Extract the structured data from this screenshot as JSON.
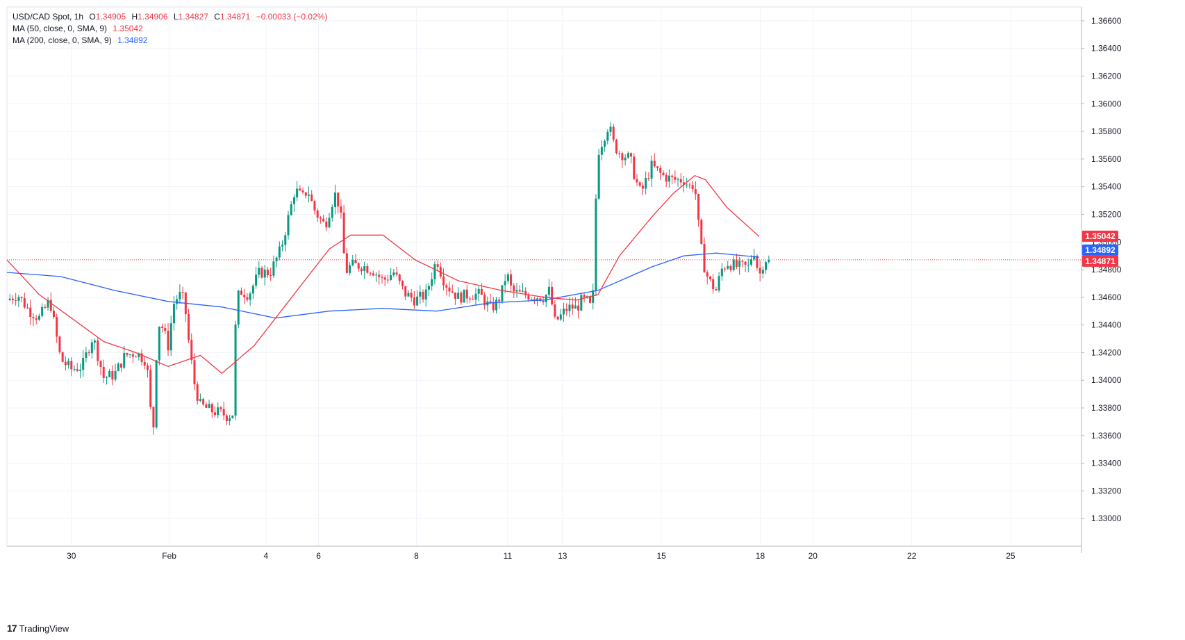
{
  "legend": {
    "title": "USD/CAD Spot, 1h",
    "o_label": "O",
    "o_value": "1.34905",
    "h_label": "H",
    "h_value": "1.34906",
    "l_label": "L",
    "l_value": "1.34827",
    "c_label": "C",
    "c_value": "1.34871",
    "change": "−0.00033 (−0.02%)",
    "ma50_label": "MA (50, close, 0, SMA, 9)",
    "ma50_value": "1.35042",
    "ma200_label": "MA (200, close, 0, SMA, 9)",
    "ma200_value": "1.34892"
  },
  "brand": {
    "logo_text": "17",
    "name": "TradingView"
  },
  "colors": {
    "bull": "#089981",
    "bear": "#f23645",
    "ma50": "#f23645",
    "ma200": "#2962ff",
    "grid": "#f0f3fa",
    "axis_text": "#131722",
    "price_line": "#f23645"
  },
  "chart_data": {
    "type": "candlestick",
    "title": "USD/CAD Spot, 1h",
    "ylim": [
      1.328,
      1.367
    ],
    "y_ticks": [
      "1.33000",
      "1.33200",
      "1.33400",
      "1.33600",
      "1.33800",
      "1.34000",
      "1.34200",
      "1.34400",
      "1.34600",
      "1.34800",
      "1.35000",
      "1.35200",
      "1.35400",
      "1.35600",
      "1.35800",
      "1.36000",
      "1.36200",
      "1.36400",
      "1.36600"
    ],
    "x_ticks": [
      {
        "label": "30",
        "t": 0.06
      },
      {
        "label": "Feb",
        "t": 0.151
      },
      {
        "label": "4",
        "t": 0.241
      },
      {
        "label": "6",
        "t": 0.29
      },
      {
        "label": "8",
        "t": 0.381
      },
      {
        "label": "11",
        "t": 0.466
      },
      {
        "label": "13",
        "t": 0.517
      },
      {
        "label": "15",
        "t": 0.609
      },
      {
        "label": "18",
        "t": 0.701
      },
      {
        "label": "20",
        "t": 0.75
      },
      {
        "label": "22",
        "t": 0.842
      },
      {
        "label": "25",
        "t": 0.934
      }
    ],
    "anchors": [
      [
        0.0,
        1.3458
      ],
      [
        0.01,
        1.3462
      ],
      [
        0.02,
        1.3451
      ],
      [
        0.03,
        1.3445
      ],
      [
        0.04,
        1.3458
      ],
      [
        0.05,
        1.3415
      ],
      [
        0.06,
        1.3408
      ],
      [
        0.07,
        1.341
      ],
      [
        0.08,
        1.3432
      ],
      [
        0.09,
        1.3402
      ],
      [
        0.1,
        1.3404
      ],
      [
        0.11,
        1.3418
      ],
      [
        0.12,
        1.342
      ],
      [
        0.13,
        1.3414
      ],
      [
        0.134,
        1.3375
      ],
      [
        0.137,
        1.3365
      ],
      [
        0.14,
        1.3442
      ],
      [
        0.145,
        1.3438
      ],
      [
        0.15,
        1.3425
      ],
      [
        0.155,
        1.3455
      ],
      [
        0.16,
        1.3462
      ],
      [
        0.165,
        1.3458
      ],
      [
        0.17,
        1.3422
      ],
      [
        0.175,
        1.3395
      ],
      [
        0.18,
        1.3382
      ],
      [
        0.19,
        1.3378
      ],
      [
        0.2,
        1.3376
      ],
      [
        0.205,
        1.3374
      ],
      [
        0.21,
        1.3376
      ],
      [
        0.213,
        1.3445
      ],
      [
        0.216,
        1.3465
      ],
      [
        0.225,
        1.3462
      ],
      [
        0.235,
        1.3478
      ],
      [
        0.245,
        1.3478
      ],
      [
        0.255,
        1.3495
      ],
      [
        0.262,
        1.3518
      ],
      [
        0.268,
        1.3538
      ],
      [
        0.275,
        1.3532
      ],
      [
        0.28,
        1.3538
      ],
      [
        0.285,
        1.3525
      ],
      [
        0.29,
        1.3518
      ],
      [
        0.296,
        1.3512
      ],
      [
        0.3,
        1.3522
      ],
      [
        0.305,
        1.3535
      ],
      [
        0.31,
        1.3525
      ],
      [
        0.315,
        1.3478
      ],
      [
        0.32,
        1.3483
      ],
      [
        0.33,
        1.3483
      ],
      [
        0.34,
        1.348
      ],
      [
        0.35,
        1.3472
      ],
      [
        0.36,
        1.3478
      ],
      [
        0.37,
        1.3463
      ],
      [
        0.38,
        1.3458
      ],
      [
        0.39,
        1.3462
      ],
      [
        0.395,
        1.3475
      ],
      [
        0.4,
        1.3488
      ],
      [
        0.405,
        1.3475
      ],
      [
        0.41,
        1.3468
      ],
      [
        0.42,
        1.346
      ],
      [
        0.43,
        1.3462
      ],
      [
        0.44,
        1.3462
      ],
      [
        0.45,
        1.3452
      ],
      [
        0.455,
        1.3455
      ],
      [
        0.46,
        1.3462
      ],
      [
        0.465,
        1.3478
      ],
      [
        0.47,
        1.3464
      ],
      [
        0.48,
        1.3462
      ],
      [
        0.49,
        1.3461
      ],
      [
        0.5,
        1.346
      ],
      [
        0.505,
        1.3465
      ],
      [
        0.51,
        1.3442
      ],
      [
        0.515,
        1.3446
      ],
      [
        0.52,
        1.3451
      ],
      [
        0.525,
        1.3453
      ],
      [
        0.53,
        1.3452
      ],
      [
        0.535,
        1.3458
      ],
      [
        0.54,
        1.3457
      ],
      [
        0.545,
        1.345
      ],
      [
        0.547,
        1.3512
      ],
      [
        0.55,
        1.3565
      ],
      [
        0.555,
        1.3575
      ],
      [
        0.56,
        1.3585
      ],
      [
        0.565,
        1.357
      ],
      [
        0.57,
        1.3565
      ],
      [
        0.58,
        1.356
      ],
      [
        0.585,
        1.3545
      ],
      [
        0.59,
        1.3535
      ],
      [
        0.6,
        1.3555
      ],
      [
        0.61,
        1.3548
      ],
      [
        0.62,
        1.3545
      ],
      [
        0.63,
        1.3545
      ],
      [
        0.635,
        1.354
      ],
      [
        0.64,
        1.3542
      ],
      [
        0.645,
        1.35
      ],
      [
        0.65,
        1.3478
      ],
      [
        0.655,
        1.347
      ],
      [
        0.66,
        1.3465
      ],
      [
        0.665,
        1.348
      ],
      [
        0.67,
        1.3485
      ],
      [
        0.68,
        1.3482
      ],
      [
        0.69,
        1.3482
      ],
      [
        0.695,
        1.3495
      ],
      [
        0.7,
        1.3475
      ],
      [
        0.705,
        1.3488
      ],
      [
        0.709,
        1.34871
      ]
    ],
    "ma50": [
      [
        0.0,
        1.3487
      ],
      [
        0.03,
        1.3462
      ],
      [
        0.06,
        1.3445
      ],
      [
        0.09,
        1.3428
      ],
      [
        0.12,
        1.342
      ],
      [
        0.15,
        1.341
      ],
      [
        0.18,
        1.3418
      ],
      [
        0.2,
        1.3405
      ],
      [
        0.23,
        1.3425
      ],
      [
        0.26,
        1.3455
      ],
      [
        0.3,
        1.3495
      ],
      [
        0.32,
        1.3505
      ],
      [
        0.35,
        1.3505
      ],
      [
        0.38,
        1.3487
      ],
      [
        0.42,
        1.3472
      ],
      [
        0.46,
        1.3465
      ],
      [
        0.5,
        1.346
      ],
      [
        0.53,
        1.3458
      ],
      [
        0.55,
        1.3462
      ],
      [
        0.57,
        1.349
      ],
      [
        0.6,
        1.3518
      ],
      [
        0.62,
        1.3535
      ],
      [
        0.64,
        1.3548
      ],
      [
        0.65,
        1.3545
      ],
      [
        0.67,
        1.3525
      ],
      [
        0.7,
        1.3504
      ]
    ],
    "ma200": [
      [
        0.0,
        1.3478
      ],
      [
        0.05,
        1.3475
      ],
      [
        0.1,
        1.3465
      ],
      [
        0.15,
        1.3457
      ],
      [
        0.2,
        1.3453
      ],
      [
        0.25,
        1.3445
      ],
      [
        0.3,
        1.345
      ],
      [
        0.35,
        1.3452
      ],
      [
        0.4,
        1.345
      ],
      [
        0.45,
        1.3456
      ],
      [
        0.5,
        1.3458
      ],
      [
        0.55,
        1.3465
      ],
      [
        0.6,
        1.3482
      ],
      [
        0.63,
        1.349
      ],
      [
        0.66,
        1.3492
      ],
      [
        0.7,
        1.3489
      ]
    ],
    "last_values": {
      "ma50": "1.35042",
      "ma200": "1.34892",
      "close": "1.34871"
    },
    "grid": true,
    "legend_position": "top-left"
  }
}
